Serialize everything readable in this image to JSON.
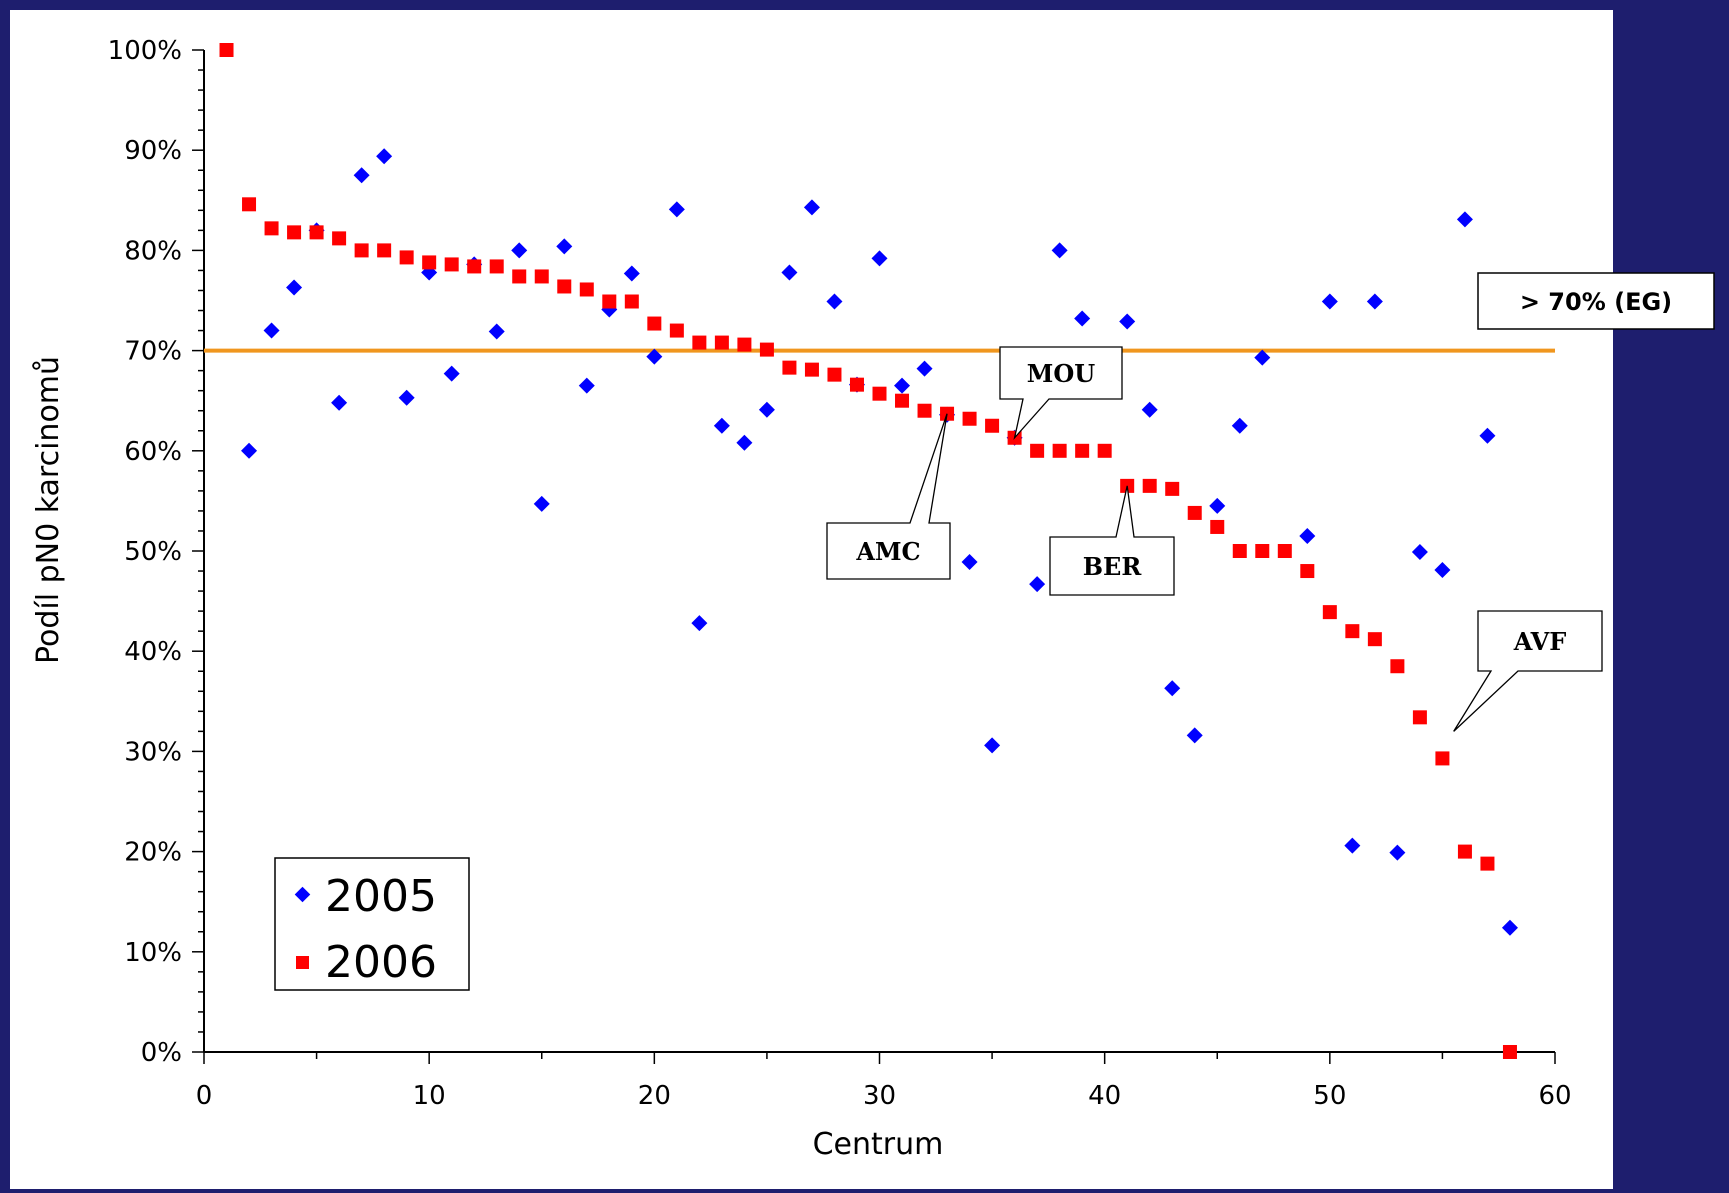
{
  "chart_data": {
    "type": "scatter",
    "title": "",
    "xlabel": "Centrum",
    "ylabel": "Podíl pN0 karcinomů",
    "xlim": [
      0,
      60
    ],
    "ylim": [
      0,
      100
    ],
    "x_ticks": [
      0,
      10,
      20,
      30,
      40,
      50,
      60
    ],
    "x_tick_labels": [
      "0",
      "10",
      "20",
      "30",
      "40",
      "50",
      "60"
    ],
    "y_ticks": [
      0,
      10,
      20,
      30,
      40,
      50,
      60,
      70,
      80,
      90,
      100
    ],
    "y_tick_labels": [
      "0%",
      "10%",
      "20%",
      "30%",
      "40%",
      "50%",
      "60%",
      "70%",
      "80%",
      "90%",
      "100%"
    ],
    "grid": false,
    "legend_position": "bottom-left",
    "series": [
      {
        "name": "2005",
        "marker": "diamond",
        "color": "#0000ff",
        "x": [
          2,
          3,
          4,
          5,
          6,
          7,
          8,
          9,
          10,
          11,
          12,
          13,
          14,
          15,
          16,
          17,
          18,
          19,
          20,
          21,
          22,
          23,
          24,
          25,
          26,
          27,
          28,
          29,
          30,
          31,
          32,
          33,
          34,
          35,
          36,
          37,
          38,
          39,
          41,
          42,
          43,
          44,
          45,
          46,
          47,
          49,
          50,
          51,
          52,
          53,
          54,
          55,
          56,
          57,
          58
        ],
        "y": [
          60,
          72,
          76.3,
          82,
          64.8,
          87.5,
          89.4,
          65.3,
          77.8,
          67.7,
          78.6,
          71.9,
          80,
          54.7,
          80.4,
          66.5,
          74.1,
          77.7,
          69.4,
          84.1,
          42.8,
          62.5,
          60.8,
          64.1,
          77.8,
          84.3,
          74.9,
          66.6,
          79.2,
          66.5,
          68.2,
          63.6,
          48.9,
          30.6,
          61.3,
          46.7,
          80,
          73.2,
          72.9,
          64.1,
          36.3,
          31.6,
          54.5,
          62.5,
          69.3,
          51.5,
          74.9,
          20.6,
          74.9,
          19.9,
          49.9,
          48.1,
          83.1,
          61.5,
          12.4
        ]
      },
      {
        "name": "2006",
        "marker": "square",
        "color": "#ff0000",
        "x": [
          1,
          2,
          3,
          4,
          5,
          6,
          7,
          8,
          9,
          10,
          11,
          12,
          13,
          14,
          15,
          16,
          17,
          18,
          19,
          20,
          21,
          22,
          23,
          24,
          25,
          26,
          27,
          28,
          29,
          30,
          31,
          32,
          33,
          34,
          35,
          36,
          37,
          38,
          39,
          40,
          41,
          42,
          43,
          44,
          45,
          46,
          47,
          48,
          49,
          50,
          51,
          52,
          53,
          54,
          55,
          56,
          57,
          58
        ],
        "y": [
          100,
          84.6,
          82.2,
          81.8,
          81.8,
          81.2,
          80,
          80,
          79.3,
          78.8,
          78.6,
          78.4,
          78.4,
          77.4,
          77.4,
          76.4,
          76.1,
          74.9,
          74.9,
          72.7,
          72,
          70.8,
          70.8,
          70.6,
          70.1,
          68.3,
          68.1,
          67.6,
          66.6,
          65.7,
          65,
          64,
          63.7,
          63.2,
          62.5,
          61.3,
          60,
          60,
          60,
          60,
          56.5,
          56.5,
          56.2,
          53.8,
          52.4,
          50,
          50,
          50,
          48,
          43.9,
          42,
          41.2,
          38.5,
          33.4,
          29.3,
          20,
          18.8,
          0
        ]
      }
    ],
    "reference_line": {
      "y": 70,
      "color": "#f0961e",
      "label": "> 70% (EG)"
    },
    "annotations": [
      {
        "text": "MOU",
        "x": 36,
        "y": 61.3
      },
      {
        "text": "AMC",
        "x": 33,
        "y": 63.7
      },
      {
        "text": "BER",
        "x": 41,
        "y": 56.5
      },
      {
        "text": "AVF",
        "x": 55.5,
        "y": 32
      }
    ]
  }
}
